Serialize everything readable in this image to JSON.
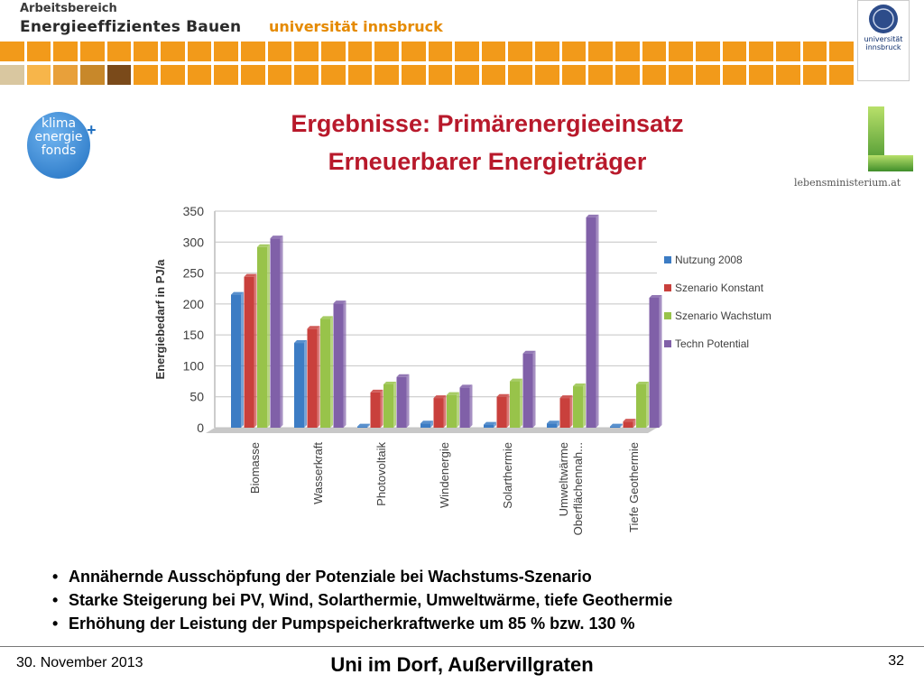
{
  "header": {
    "dept_small": "Arbeitsbereich",
    "dept_big": "Energieeffizientes Bauen",
    "university": "universität innsbruck",
    "seal_text": "universität innsbruck"
  },
  "logos": {
    "klima": "klima energie fonds",
    "lebensministerium": "lebensministerium.at"
  },
  "title_line1": "Ergebnisse: Primärenergieeinsatz",
  "title_line2": "Erneuerbarer Energieträger",
  "colors": {
    "orange": "#f29a1a",
    "title_red": "#b8192b",
    "nutzung": "#3c7cc4",
    "konstant": "#c9403c",
    "wachstum": "#98c34a",
    "techn": "#8060a8"
  },
  "chart_data": {
    "type": "bar",
    "ylabel": "Energiebedarf in PJ/a",
    "ylim": [
      0,
      350
    ],
    "yticks": [
      0,
      50,
      100,
      150,
      200,
      250,
      300,
      350
    ],
    "categories": [
      "Biomasse",
      "Wasserkraft",
      "Photovoltaik",
      "Windenergie",
      "Solarthermie",
      "Umweltwärme Oberflächennah...",
      "Tiefe Geothermie"
    ],
    "category_lines": [
      [
        "Biomasse"
      ],
      [
        "Wasserkraft"
      ],
      [
        "Photovoltaik"
      ],
      [
        "Windenergie"
      ],
      [
        "Solarthermie"
      ],
      [
        "Umweltwärme",
        "Oberflächennah..."
      ],
      [
        "Tiefe Geothermie"
      ]
    ],
    "series": [
      {
        "name": "Nutzung 2008",
        "values": [
          215,
          137,
          2,
          7,
          5,
          7,
          2
        ]
      },
      {
        "name": "Szenario Konstant",
        "values": [
          244,
          160,
          57,
          48,
          50,
          48,
          10
        ]
      },
      {
        "name": "Szenario Wachstum",
        "values": [
          292,
          176,
          70,
          53,
          75,
          67,
          70
        ]
      },
      {
        "name": "Techn Potential",
        "values": [
          306,
          201,
          82,
          65,
          120,
          340,
          210
        ]
      }
    ],
    "legend": "right",
    "grid": true
  },
  "bullets": [
    "Annähernde Ausschöpfung der Potenziale bei Wachstums-Szenario",
    "Starke Steigerung bei PV, Wind, Solarthermie, Umweltwärme, tiefe Geothermie",
    "Erhöhung der Leistung der Pumpspeicherkraftwerke um 85 %  bzw. 130 %"
  ],
  "footer": {
    "date": "30. November 2013",
    "event": "Uni im Dorf, Außervillgraten",
    "page": "32"
  }
}
